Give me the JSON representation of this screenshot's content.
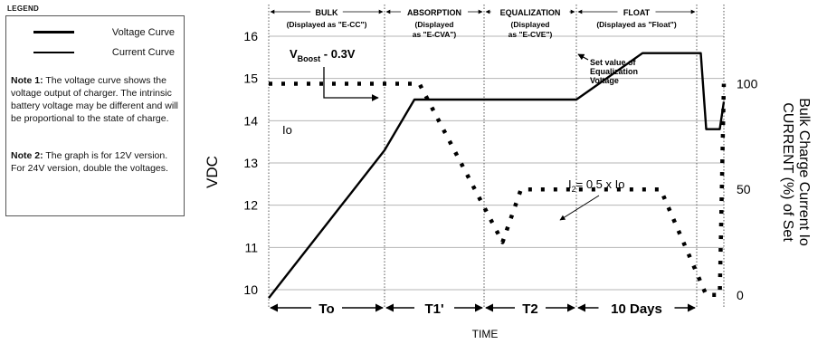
{
  "legend": {
    "title": "LEGEND",
    "items": [
      {
        "label": "Voltage Curve",
        "style": "thick"
      },
      {
        "label": "Current Curve",
        "style": "thin"
      }
    ],
    "note1_title": "Note 1:",
    "note1_text": "The voltage curve shows the voltage output of charger. The intrinsic battery voltage may be different and will be proportional to the state of charge.",
    "note2_title": "Note 2:",
    "note2_text": "The graph is for 12V version. For 24V version, double the voltages."
  },
  "chart_data": {
    "type": "line",
    "xlabel": "TIME",
    "ylabel": "VDC",
    "ylabel_right_line1": "CURRENT (%) of Set",
    "ylabel_right_line2": "Bulk Charge Current Io",
    "ylim": [
      9.25,
      16.75
    ],
    "y_ticks": [
      "10",
      "11",
      "12",
      "13",
      "14",
      "15",
      "16"
    ],
    "y2lim": [
      -12.5,
      137.5
    ],
    "y2_ticks": [
      "0",
      "50",
      "100"
    ],
    "grid": true,
    "phases": [
      {
        "title": "BULK",
        "sub1": "(Displayed as \"E-CC\")",
        "sub2": ""
      },
      {
        "title": "ABSORPTION",
        "sub1": "(Displayed",
        "sub2": "as \"E-CVA\")"
      },
      {
        "title": "EQUALIZATION",
        "sub1": "(Displayed",
        "sub2": "as \"E-CVE\")"
      },
      {
        "title": "FLOAT",
        "sub1": "(Displayed as \"Float\")",
        "sub2": ""
      }
    ],
    "periods": [
      "To",
      "T1'",
      "T2",
      "10 Days"
    ],
    "series": [
      {
        "name": "Voltage Curve",
        "axis": "left",
        "x": [
          0,
          1,
          1.3,
          2,
          2.3,
          3,
          3.55,
          4.15,
          4.35,
          4.5,
          4.65,
          4.85,
          5
        ],
        "values": [
          9.8,
          13.3,
          14.5,
          14.5,
          14.5,
          14.5,
          15.6,
          15.6,
          13.8,
          13.8,
          13.8,
          13.8,
          14.45
        ]
      },
      {
        "name": "Current Curve",
        "axis": "right",
        "x": [
          0,
          1,
          1.3,
          1.35,
          2.2,
          2.4,
          3.6,
          3.7,
          4.35,
          4.6,
          4.65,
          4.85,
          5
        ],
        "values": [
          100,
          100,
          100,
          100,
          25,
          50,
          50,
          50,
          0,
          0,
          0,
          0,
          100
        ]
      }
    ],
    "annotations": {
      "vboost_main": "V",
      "vboost_sub": "Boost",
      "vboost_rest": " - 0.3V",
      "set_value_1": "Set value of",
      "set_value_2": "Equalization",
      "set_value_3": "Voltage",
      "io": "Io",
      "i2_main": "I",
      "i2_sub": "2",
      "i2_rest": "= 0.5 x Io"
    }
  }
}
